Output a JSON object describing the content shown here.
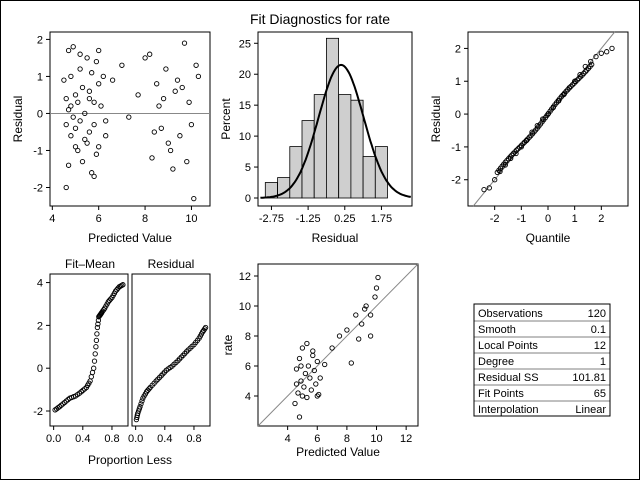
{
  "title": "Fit Diagnostics for rate",
  "panels": {
    "resid_vs_pred": {
      "xlabel": "Predicted Value",
      "ylabel": "Residual",
      "xlim": [
        3.9,
        10.8
      ],
      "ylim": [
        -2.5,
        2.2
      ],
      "xticks": [
        "4",
        "6",
        "8",
        "10"
      ],
      "yticks": [
        "2",
        "1",
        "0",
        "-1",
        "-2"
      ]
    },
    "histogram": {
      "xlabel": "Residual",
      "ylabel": "Percent",
      "xticks": [
        "-2.75",
        "-1.25",
        "0.25",
        "1.75"
      ],
      "yticks": [
        "25",
        "20",
        "15",
        "10",
        "5",
        "0"
      ]
    },
    "qq": {
      "xlabel": "Quantile",
      "ylabel": "Residual",
      "xticks": [
        "-2",
        "-1",
        "0",
        "1",
        "2"
      ],
      "yticks": [
        "2",
        "1",
        "0",
        "-1",
        "-2"
      ]
    },
    "rf_spread": {
      "xlabel": "Proportion Less",
      "left_title": "Fit–Mean",
      "right_title": "Residual",
      "xticks": [
        "0.0",
        "0.4",
        "0.8"
      ],
      "yticks": [
        "4",
        "2",
        "0",
        "-2"
      ]
    },
    "fit": {
      "xlabel": "Predicted Value",
      "ylabel": "rate",
      "xticks": [
        "4",
        "6",
        "8",
        "10",
        "12"
      ],
      "yticks": [
        "12",
        "10",
        "8",
        "6",
        "4"
      ]
    }
  },
  "stats": [
    {
      "label": "Observations",
      "value": "120"
    },
    {
      "label": "Smooth",
      "value": "0.1"
    },
    {
      "label": "Local Points",
      "value": "12"
    },
    {
      "label": "Degree",
      "value": "1"
    },
    {
      "label": "Residual SS",
      "value": "101.81"
    },
    {
      "label": "Fit Points",
      "value": "65"
    },
    {
      "label": "Interpolation",
      "value": "Linear"
    }
  ],
  "chart_data": [
    {
      "type": "scatter",
      "x": [
        4.5,
        4.6,
        4.6,
        4.7,
        4.7,
        4.8,
        4.8,
        4.8,
        4.9,
        4.9,
        5.0,
        5.0,
        5.1,
        5.1,
        5.2,
        5.2,
        5.3,
        5.3,
        5.4,
        5.5,
        5.5,
        5.6,
        5.6,
        5.7,
        5.7,
        5.8,
        5.8,
        5.9,
        5.9,
        6.0,
        6.0,
        6.1,
        6.2,
        6.3,
        4.6,
        4.7,
        5.0,
        5.2,
        5.4,
        5.6,
        5.8,
        6.0,
        6.3,
        6.6,
        7.0,
        7.3,
        7.7,
        8.0,
        8.3,
        8.5,
        8.7,
        8.9,
        9.1,
        9.3,
        9.5,
        9.7,
        9.9,
        10.1,
        10.3,
        8.2,
        8.6,
        9.0,
        9.4,
        9.8,
        10.2,
        8.4,
        8.8,
        9.2,
        9.6,
        10.0
      ],
      "y": [
        0.9,
        -0.3,
        0.4,
        1.7,
        -1.4,
        0.2,
        -0.6,
        1.0,
        -0.1,
        1.8,
        0.5,
        -0.4,
        -1.0,
        0.3,
        1.2,
        -0.2,
        0.7,
        -1.3,
        0.0,
        1.5,
        -0.8,
        0.6,
        -0.5,
        1.1,
        -1.6,
        0.3,
        -0.3,
        1.4,
        -1.1,
        0.8,
        -0.9,
        0.2,
        1.0,
        -0.6,
        -2.0,
        0.1,
        -0.9,
        1.6,
        -0.7,
        0.4,
        -1.7,
        1.7,
        -0.2,
        0.9,
        1.3,
        -0.1,
        0.5,
        1.5,
        -1.2,
        0.8,
        -0.4,
        1.2,
        -1.0,
        0.6,
        -0.6,
        1.9,
        0.3,
        -2.3,
        1.0,
        1.6,
        0.2,
        -0.8,
        0.9,
        -1.3,
        1.3,
        -0.5,
        0.4,
        -1.5,
        0.7,
        -0.3
      ],
      "title": "",
      "xlabel": "Predicted Value",
      "ylabel": "Residual",
      "xlim": [
        3.9,
        10.8
      ],
      "ylim": [
        -2.5,
        2.2
      ],
      "grid": false
    },
    {
      "type": "bar",
      "categories": [
        "-2.75",
        "-2.25",
        "-1.75",
        "-1.25",
        "-0.75",
        "-0.25",
        "0.25",
        "0.75",
        "1.25",
        "1.75"
      ],
      "values": [
        2.5,
        3.3,
        8.3,
        12.5,
        16.7,
        25.8,
        16.7,
        15.8,
        6.7,
        8.3
      ],
      "title": "",
      "xlabel": "Residual",
      "ylabel": "Percent",
      "ylim": [
        0,
        26
      ],
      "grid": false
    },
    {
      "type": "scatter",
      "x": [
        -2.4,
        -2.2,
        -2.0,
        -1.8,
        -1.6,
        -1.4,
        -1.2,
        -1.0,
        -0.8,
        -0.6,
        -0.4,
        -0.2,
        0.0,
        0.2,
        0.4,
        0.6,
        0.8,
        1.0,
        1.2,
        1.4,
        1.6,
        1.8,
        2.0,
        2.2,
        2.4
      ],
      "y": [
        -2.3,
        -2.25,
        -2.0,
        -1.75,
        -1.55,
        -1.35,
        -1.2,
        -1.0,
        -0.8,
        -0.55,
        -0.35,
        -0.15,
        0.0,
        0.2,
        0.4,
        0.6,
        0.8,
        1.0,
        1.2,
        1.45,
        1.6,
        1.75,
        1.85,
        1.9,
        2.0
      ],
      "title": "",
      "xlabel": "Quantile",
      "ylabel": "Residual",
      "xlim": [
        -3.0,
        3.0
      ],
      "ylim": [
        -2.8,
        2.5
      ],
      "grid": false
    },
    {
      "type": "scatter",
      "series": [
        {
          "name": "Fit–Mean",
          "x": [
            0.02,
            0.08,
            0.15,
            0.22,
            0.3,
            0.38,
            0.45,
            0.5,
            0.55,
            0.58,
            0.6,
            0.62,
            0.64,
            0.66,
            0.7,
            0.75,
            0.8,
            0.85,
            0.9,
            0.95
          ],
          "y": [
            -1.95,
            -1.8,
            -1.6,
            -1.4,
            -1.3,
            -1.1,
            -0.9,
            -0.6,
            0.0,
            1.0,
            1.9,
            2.4,
            2.5,
            2.6,
            2.8,
            3.1,
            3.3,
            3.6,
            3.8,
            3.9
          ]
        },
        {
          "name": "Residual",
          "x": [
            0.01,
            0.03,
            0.06,
            0.1,
            0.15,
            0.2,
            0.28,
            0.35,
            0.42,
            0.5,
            0.58,
            0.65,
            0.72,
            0.8,
            0.87,
            0.92,
            0.96
          ],
          "y": [
            -2.4,
            -2.1,
            -1.8,
            -1.4,
            -1.1,
            -0.9,
            -0.6,
            -0.35,
            -0.1,
            0.1,
            0.35,
            0.6,
            0.85,
            1.1,
            1.4,
            1.7,
            1.9
          ]
        }
      ],
      "title": "",
      "xlabel": "Proportion Less",
      "xlim": [
        -0.05,
        1.02
      ],
      "ylim": [
        -2.7,
        4.4
      ],
      "grid": false
    },
    {
      "type": "scatter",
      "x": [
        4.5,
        4.6,
        4.7,
        4.8,
        4.8,
        4.9,
        5.0,
        5.0,
        5.1,
        5.2,
        5.3,
        5.4,
        5.5,
        5.6,
        5.7,
        5.8,
        5.9,
        6.0,
        6.1,
        6.2,
        4.6,
        4.9,
        5.3,
        5.7,
        6.0,
        6.5,
        7.0,
        7.5,
        8.0,
        8.3,
        8.6,
        9.0,
        9.3,
        9.6,
        9.9,
        10.1,
        8.8,
        9.2,
        9.6,
        10.0
      ],
      "y": [
        3.5,
        5.8,
        4.2,
        6.5,
        2.6,
        5.0,
        4.0,
        7.2,
        4.6,
        5.5,
        3.9,
        6.0,
        5.2,
        4.4,
        7.0,
        5.7,
        4.8,
        6.3,
        4.1,
        5.2,
        4.8,
        6.0,
        7.5,
        6.7,
        4.0,
        6.1,
        7.2,
        8.0,
        8.4,
        6.2,
        9.4,
        8.8,
        10.0,
        9.4,
        10.6,
        11.9,
        7.8,
        9.8,
        8.0,
        11.2
      ],
      "title": "",
      "xlabel": "Predicted Value",
      "ylabel": "rate",
      "xlim": [
        2,
        12.8
      ],
      "ylim": [
        2,
        12.8
      ],
      "grid": false
    }
  ]
}
